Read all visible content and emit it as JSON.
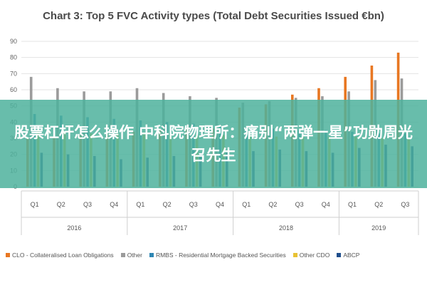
{
  "chart_data": {
    "type": "bar",
    "title": "Chart 3: Top 5 FVC Activity types (Total Debt Securities Issued €bn)",
    "xlabel": "",
    "ylabel": "",
    "ylim": [
      0,
      90
    ],
    "yticks": [
      "0",
      "10",
      "20",
      "30",
      "40",
      "50",
      "60",
      "70",
      "80",
      "90"
    ],
    "grid": true,
    "legend_position": "bottom",
    "categories": [
      "Q1",
      "Q2",
      "Q3",
      "Q4",
      "Q1",
      "Q2",
      "Q3",
      "Q4",
      "Q1",
      "Q2",
      "Q3",
      "Q4",
      "Q1",
      "Q2",
      "Q3"
    ],
    "groups": [
      {
        "label": "2016",
        "start": 0,
        "count": 4
      },
      {
        "label": "2017",
        "start": 4,
        "count": 4
      },
      {
        "label": "2018",
        "start": 8,
        "count": 4
      },
      {
        "label": "2019",
        "start": 12,
        "count": 3
      }
    ],
    "series": [
      {
        "name": "CLO - Collateralised Loan Obligations",
        "color": "#e87722",
        "values": [
          30,
          31,
          32,
          33,
          34,
          35,
          36,
          36,
          49,
          51,
          57,
          61,
          68,
          75,
          83
        ]
      },
      {
        "name": "Other",
        "color": "#9b9b9b",
        "values": [
          68,
          61,
          59,
          59,
          61,
          58,
          56,
          55,
          52,
          53,
          55,
          56,
          59,
          66,
          67
        ]
      },
      {
        "name": "RMBS - Residential Mortgage Backed Securities",
        "color": "#2e86b3",
        "values": [
          45,
          44,
          43,
          42,
          41,
          40,
          39,
          38,
          37,
          36,
          35,
          35,
          34,
          33,
          33
        ]
      },
      {
        "name": "Other CDO",
        "color": "#e8c234",
        "values": [
          35,
          34,
          33,
          33,
          33,
          32,
          32,
          32,
          32,
          31,
          31,
          31,
          31,
          30,
          30
        ]
      },
      {
        "name": "ABCP",
        "color": "#1f4e8c",
        "values": [
          21,
          20,
          19,
          17,
          18,
          19,
          20,
          21,
          22,
          23,
          22,
          21,
          24,
          26,
          25
        ]
      }
    ]
  },
  "overlay": {
    "text": "股票杠杆怎么操作 中科院物理所：痛别“两弹一星”功勋周光召先生",
    "color": "#4db29c"
  }
}
